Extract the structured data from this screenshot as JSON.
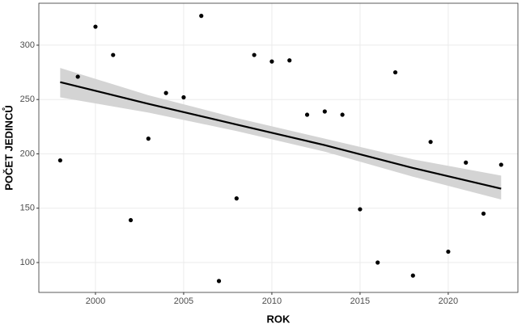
{
  "chart_data": {
    "type": "scatter",
    "x_label": "ROK",
    "y_label": "POČET JEDINCŮ",
    "x": [
      1998,
      1999,
      2000,
      2001,
      2002,
      2003,
      2004,
      2005,
      2006,
      2007,
      2008,
      2009,
      2010,
      2011,
      2012,
      2013,
      2014,
      2015,
      2016,
      2017,
      2018,
      2019,
      2020,
      2021,
      2022,
      2023
    ],
    "values": [
      194,
      271,
      317,
      291,
      139,
      214,
      256,
      252,
      327,
      83,
      159,
      291,
      285,
      286,
      236,
      239,
      236,
      149,
      100,
      275,
      88,
      211,
      110,
      192,
      145,
      190
    ],
    "color": "#000000",
    "fit": {
      "x": [
        1998,
        2003,
        2008,
        2013,
        2018,
        2023
      ],
      "values": [
        266,
        246,
        227,
        208,
        187,
        168
      ],
      "lower": [
        252,
        238,
        221,
        202,
        179,
        158
      ],
      "upper": [
        279,
        254,
        233,
        214,
        195,
        180
      ],
      "color": "#000000",
      "band_color": "#d4d4d4"
    },
    "xlim": [
      1996.79,
      2023.95
    ],
    "xticks": [
      2000,
      2005,
      2010,
      2015,
      2020
    ],
    "ylim": [
      72.5,
      338.6
    ],
    "yticks": [
      100,
      150,
      200,
      250,
      300
    ],
    "grid": true
  }
}
